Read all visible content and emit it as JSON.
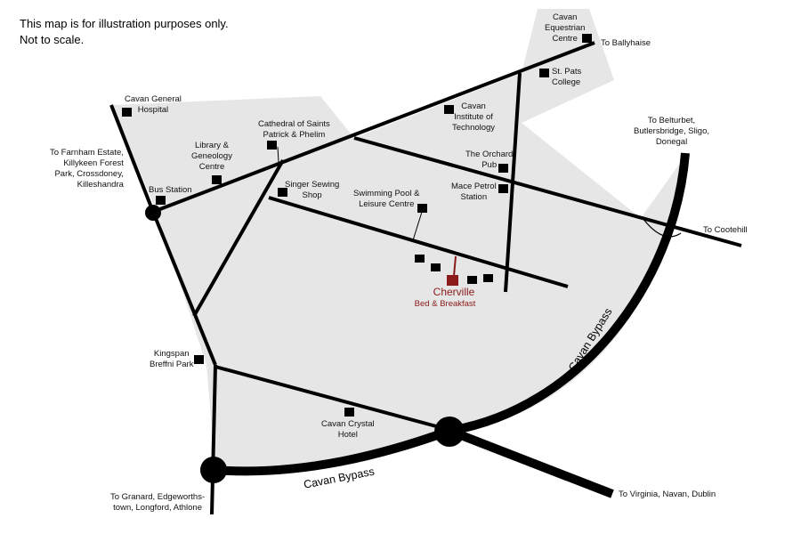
{
  "disclaimer": {
    "line1": "This map is for illustration purposes only.",
    "line2": "Not to scale."
  },
  "colors": {
    "area_fill": "#e6e6e6",
    "road": "#000000",
    "accent": "#8b1a1a"
  },
  "landmarks": [
    {
      "id": "cavan-equestrian-centre",
      "text": "Cavan\nEquestrian\nCentre"
    },
    {
      "id": "st-pats-college",
      "text": "St. Pats\nCollege"
    },
    {
      "id": "cavan-general-hospital",
      "text": "Cavan General\nHospital"
    },
    {
      "id": "cavan-institute-of-technology",
      "text": "Cavan\nInstitute of\nTechnology"
    },
    {
      "id": "cathedral",
      "text": "Cathedral of  Saints\nPatrick & Phelim"
    },
    {
      "id": "library",
      "text": "Library &\nGeneology\nCentre"
    },
    {
      "id": "the-orchard-pub",
      "text": "The Orchard\nPub"
    },
    {
      "id": "mace-petrol-station",
      "text": "Mace Petrol\nStation"
    },
    {
      "id": "singer-sewing-shop",
      "text": "Singer Sewing\nShop"
    },
    {
      "id": "swimming-pool",
      "text": "Swimming Pool &\nLeisure Centre"
    },
    {
      "id": "bus-station",
      "text": "Bus Station"
    },
    {
      "id": "kingspan-breffni-park",
      "text": "Kingspan\nBreffni Park"
    },
    {
      "id": "cavan-crystal-hotel",
      "text": "Cavan Crystal\nHotel"
    }
  ],
  "destinations": [
    {
      "id": "to-ballyhaise",
      "text": "To Ballyhaise"
    },
    {
      "id": "to-farnham",
      "text": "To Farnham Estate,\nKillykeen Forest\nPark, Crossdoney,\nKilleshandra"
    },
    {
      "id": "to-belturbet",
      "text": "To Belturbet,\nButlersbridge, Sligo,\nDonegal"
    },
    {
      "id": "to-cootehill",
      "text": "To Cootehill"
    },
    {
      "id": "to-virginia",
      "text": "To Virginia, Navan, Dublin"
    },
    {
      "id": "to-granard",
      "text": "To Granard, Edgeworths-\ntown, Longford, Athlone"
    }
  ],
  "bypass_labels": [
    "Cavan Bypass",
    "Cavan Bypass"
  ],
  "cherville": {
    "name": "Cherville",
    "subtitle": "Bed & Breakfast"
  }
}
